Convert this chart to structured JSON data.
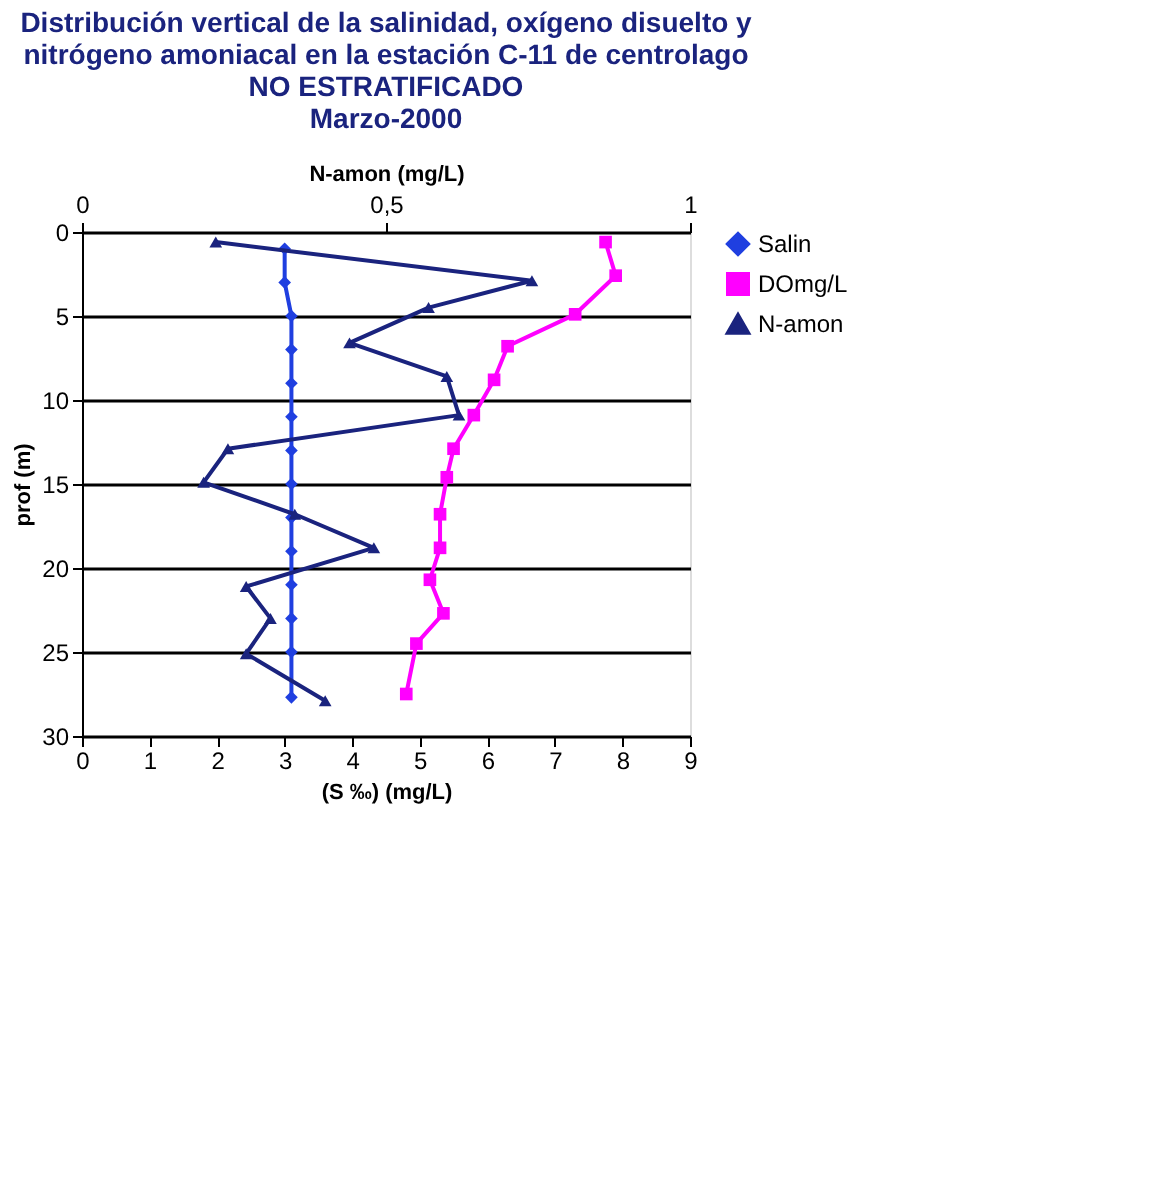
{
  "chart_data": {
    "type": "line",
    "title": "Distribución vertical de la salinidad, oxígeno disuelto y\nnitrógeno amoniacal en la estación C-11 de centrolago\nNO ESTRATIFICADO\nMarzo-2000",
    "xlabel": "(S ‰) (mg/L)",
    "ylabel": "prof (m)",
    "x2label": "N-amon (mg/L)",
    "xlim": [
      0,
      9
    ],
    "xticks": [
      0,
      1,
      2,
      3,
      4,
      5,
      6,
      7,
      8,
      9
    ],
    "x2lim": [
      0,
      1
    ],
    "x2ticks": [
      0,
      {
        "value": 0.5,
        "label": "0,5"
      },
      1
    ],
    "ylim": [
      30,
      0
    ],
    "yticks": [
      0,
      5,
      10,
      15,
      20,
      25,
      30
    ],
    "grid": "y",
    "legend": "right",
    "series": [
      {
        "name": "Salin",
        "color": "#1f3fe0",
        "marker": "diamond",
        "x": [
          3.0,
          3.0,
          3.1,
          3.1,
          3.1,
          3.1,
          3.1,
          3.1,
          3.1,
          3.1,
          3.1,
          3.1,
          3.1,
          3.1
        ],
        "values": [
          1,
          3,
          5,
          7,
          9,
          11,
          13,
          15,
          17,
          19,
          21,
          23,
          25,
          27.7
        ]
      },
      {
        "name": "DOmg/L",
        "color": "#ff00ff",
        "marker": "square",
        "x": [
          7.75,
          7.9,
          7.3,
          6.3,
          6.1,
          5.8,
          5.5,
          5.4,
          5.3,
          5.3,
          5.15,
          5.35,
          4.95,
          4.8
        ],
        "values": [
          0.6,
          2.6,
          4.9,
          6.8,
          8.8,
          10.9,
          12.9,
          14.6,
          16.8,
          18.8,
          20.7,
          22.7,
          24.5,
          27.5
        ]
      },
      {
        "name": "N-amon",
        "color": "#1a237e",
        "marker": "triangle",
        "axis": "x2",
        "x": [
          0.22,
          0.74,
          0.57,
          0.44,
          0.6,
          0.62,
          0.24,
          0.2,
          0.35,
          0.48,
          0.27,
          0.31,
          0.27,
          0.4
        ],
        "values": [
          0.6,
          2.9,
          4.5,
          6.6,
          8.6,
          10.9,
          12.9,
          14.9,
          16.8,
          18.8,
          21.1,
          23.0,
          25.1,
          27.9
        ]
      }
    ]
  }
}
